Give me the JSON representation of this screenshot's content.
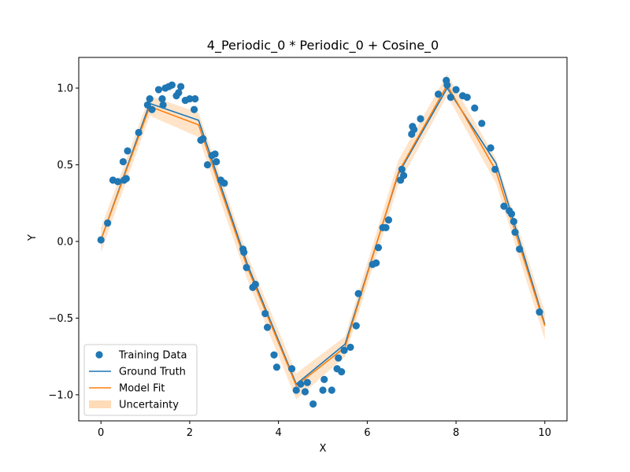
{
  "chart_data": {
    "type": "scatter",
    "title": "4_Periodic_0 * Periodic_0 + Cosine_0",
    "xlabel": "X",
    "ylabel": "Y",
    "xlim": [
      -0.5,
      10.5
    ],
    "ylim": [
      -1.17,
      1.2
    ],
    "xticks": [
      0,
      2,
      4,
      6,
      8,
      10
    ],
    "xtick_labels": [
      "0",
      "2",
      "4",
      "6",
      "8",
      "10"
    ],
    "yticks": [
      -1.0,
      -0.5,
      0.0,
      0.5,
      1.0
    ],
    "ytick_labels": [
      "−1.0",
      "−0.5",
      "0.0",
      "0.5",
      "1.0"
    ],
    "grid": false,
    "legend_position": "lower-left",
    "colors": {
      "training": "#1f77b4",
      "ground_truth": "#1f77b4",
      "model_fit": "#ff7f0e",
      "uncertainty": "#ffdbb8"
    },
    "series": [
      {
        "name": "Training Data",
        "kind": "scatter",
        "points": [
          [
            0.0,
            0.01
          ],
          [
            0.15,
            0.12
          ],
          [
            0.27,
            0.4
          ],
          [
            0.38,
            0.39
          ],
          [
            0.5,
            0.52
          ],
          [
            0.52,
            0.4
          ],
          [
            0.57,
            0.41
          ],
          [
            0.6,
            0.59
          ],
          [
            0.85,
            0.71
          ],
          [
            1.05,
            0.89
          ],
          [
            1.1,
            0.93
          ],
          [
            1.15,
            0.86
          ],
          [
            1.3,
            0.99
          ],
          [
            1.38,
            0.93
          ],
          [
            1.4,
            0.89
          ],
          [
            1.45,
            1.0
          ],
          [
            1.53,
            1.01
          ],
          [
            1.6,
            1.02
          ],
          [
            1.7,
            0.95
          ],
          [
            1.75,
            0.97
          ],
          [
            1.8,
            1.01
          ],
          [
            1.9,
            0.92
          ],
          [
            2.0,
            0.93
          ],
          [
            2.1,
            0.86
          ],
          [
            2.12,
            0.93
          ],
          [
            2.25,
            0.66
          ],
          [
            2.3,
            0.67
          ],
          [
            2.4,
            0.5
          ],
          [
            2.5,
            0.56
          ],
          [
            2.57,
            0.57
          ],
          [
            2.6,
            0.52
          ],
          [
            2.7,
            0.4
          ],
          [
            2.78,
            0.38
          ],
          [
            3.2,
            -0.05
          ],
          [
            3.22,
            -0.07
          ],
          [
            3.28,
            -0.17
          ],
          [
            3.42,
            -0.3
          ],
          [
            3.48,
            -0.28
          ],
          [
            3.7,
            -0.47
          ],
          [
            3.75,
            -0.56
          ],
          [
            3.9,
            -0.74
          ],
          [
            3.96,
            -0.82
          ],
          [
            4.3,
            -0.83
          ],
          [
            4.4,
            -0.97
          ],
          [
            4.5,
            -0.93
          ],
          [
            4.6,
            -0.98
          ],
          [
            4.65,
            -0.92
          ],
          [
            4.78,
            -1.06
          ],
          [
            5.0,
            -0.97
          ],
          [
            5.03,
            -0.9
          ],
          [
            5.2,
            -0.97
          ],
          [
            5.32,
            -0.83
          ],
          [
            5.35,
            -0.76
          ],
          [
            5.42,
            -0.85
          ],
          [
            5.48,
            -0.71
          ],
          [
            5.62,
            -0.69
          ],
          [
            5.75,
            -0.55
          ],
          [
            5.8,
            -0.34
          ],
          [
            6.12,
            -0.15
          ],
          [
            6.2,
            -0.14
          ],
          [
            6.25,
            -0.04
          ],
          [
            6.35,
            0.09
          ],
          [
            6.42,
            0.09
          ],
          [
            6.48,
            0.14
          ],
          [
            6.75,
            0.4
          ],
          [
            6.78,
            0.47
          ],
          [
            6.82,
            0.43
          ],
          [
            7.0,
            0.7
          ],
          [
            7.02,
            0.75
          ],
          [
            7.05,
            0.73
          ],
          [
            7.2,
            0.8
          ],
          [
            7.6,
            0.96
          ],
          [
            7.78,
            1.05
          ],
          [
            7.8,
            1.02
          ],
          [
            7.88,
            0.94
          ],
          [
            8.0,
            0.99
          ],
          [
            8.15,
            0.95
          ],
          [
            8.25,
            0.94
          ],
          [
            8.42,
            0.87
          ],
          [
            8.58,
            0.77
          ],
          [
            8.78,
            0.61
          ],
          [
            8.88,
            0.47
          ],
          [
            9.08,
            0.23
          ],
          [
            9.2,
            0.2
          ],
          [
            9.25,
            0.18
          ],
          [
            9.3,
            0.13
          ],
          [
            9.33,
            0.06
          ],
          [
            9.43,
            -0.05
          ],
          [
            9.88,
            -0.46
          ]
        ]
      },
      {
        "name": "Ground Truth",
        "kind": "line",
        "points": [
          [
            0.0,
            0.01
          ],
          [
            1.1,
            0.9
          ],
          [
            2.2,
            0.79
          ],
          [
            3.3,
            -0.15
          ],
          [
            4.4,
            -0.93
          ],
          [
            5.5,
            -0.67
          ],
          [
            6.7,
            0.44
          ],
          [
            7.8,
            1.0
          ],
          [
            8.9,
            0.51
          ],
          [
            10.0,
            -0.54
          ]
        ]
      },
      {
        "name": "Model Fit",
        "kind": "line",
        "points": [
          [
            0.0,
            0.01
          ],
          [
            1.1,
            0.88
          ],
          [
            2.2,
            0.76
          ],
          [
            3.3,
            -0.17
          ],
          [
            4.4,
            -0.94
          ],
          [
            5.5,
            -0.69
          ],
          [
            6.7,
            0.45
          ],
          [
            7.8,
            1.02
          ],
          [
            8.9,
            0.46
          ],
          [
            10.0,
            -0.55
          ]
        ]
      },
      {
        "name": "Uncertainty",
        "kind": "band",
        "lower": [
          [
            0.0,
            -0.07
          ],
          [
            1.1,
            0.82
          ],
          [
            2.2,
            0.68
          ],
          [
            3.3,
            -0.25
          ],
          [
            4.4,
            -1.03
          ],
          [
            5.5,
            -0.75
          ],
          [
            6.7,
            0.37
          ],
          [
            7.8,
            0.95
          ],
          [
            8.9,
            0.38
          ],
          [
            10.0,
            -0.64
          ]
        ],
        "upper": [
          [
            0.0,
            0.09
          ],
          [
            1.1,
            0.95
          ],
          [
            2.2,
            0.84
          ],
          [
            3.3,
            -0.09
          ],
          [
            4.4,
            -0.86
          ],
          [
            5.5,
            -0.62
          ],
          [
            6.7,
            0.53
          ],
          [
            7.8,
            1.09
          ],
          [
            8.9,
            0.54
          ],
          [
            10.0,
            -0.46
          ]
        ]
      }
    ]
  }
}
